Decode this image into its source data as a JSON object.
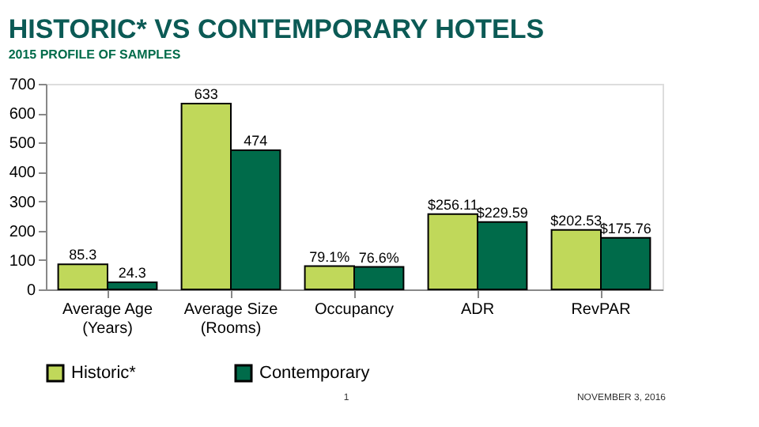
{
  "chart_data": {
    "type": "bar",
    "title": "HISTORIC* VS CONTEMPORARY  HOTELS",
    "subtitle": "2015 PROFILE OF SAMPLES",
    "categories": [
      "Average Age\n(Years)",
      "Average Size\n(Rooms)",
      "Occupancy",
      "ADR",
      "RevPAR"
    ],
    "series": [
      {
        "name": "Historic*",
        "color": "#c0d85a",
        "values": [
          85.3,
          633,
          79.1,
          256.11,
          202.53
        ],
        "value_labels": [
          "85.3",
          "633",
          "79.1%",
          "$256.11",
          "$202.53"
        ]
      },
      {
        "name": "Contemporary",
        "color": "#006b4a",
        "values": [
          24.3,
          474,
          76.6,
          229.59,
          175.76
        ],
        "value_labels": [
          "24.3",
          "474",
          "76.6%",
          "$229.59",
          "$175.76"
        ]
      }
    ],
    "ylim": [
      0,
      700
    ],
    "yticks": [
      0,
      100,
      200,
      300,
      400,
      500,
      600,
      700
    ],
    "grid": false,
    "legend": "bottom",
    "annotations": [
      "1",
      "NOVEMBER 3, 2016"
    ]
  }
}
